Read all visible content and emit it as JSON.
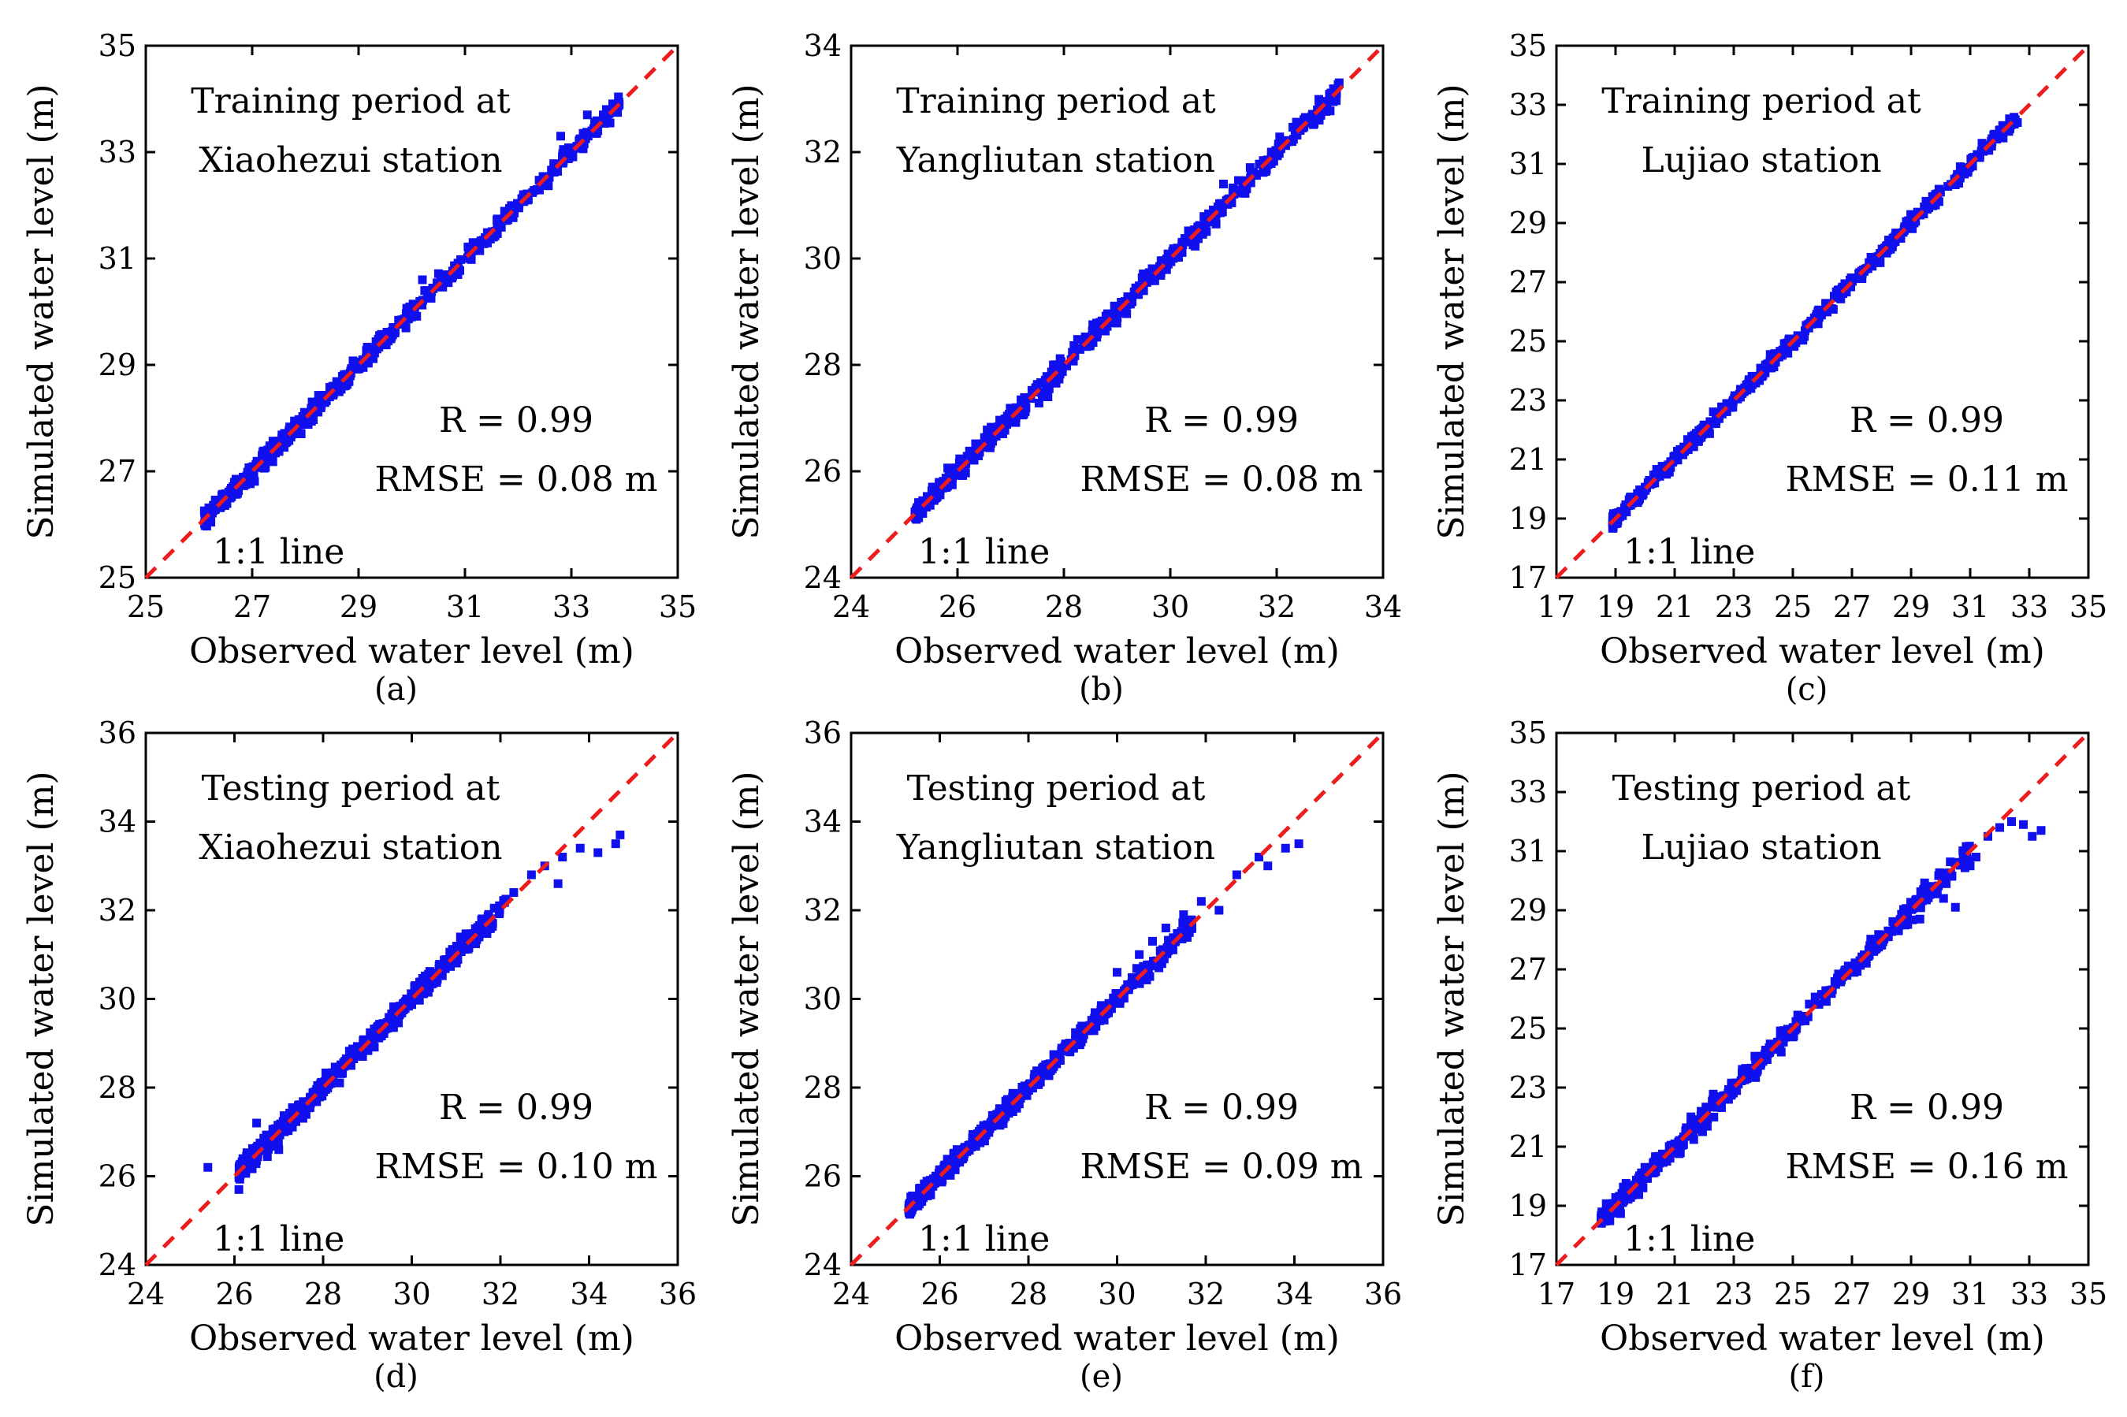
{
  "colors": {
    "points": "#1010ee",
    "one_to_one": "#ee1c1c",
    "axis": "#000000"
  },
  "chart_data": [
    {
      "type": "scatter",
      "panel_label": "(a)",
      "annotation_lines": [
        "Training period at",
        "Xiaohezui station"
      ],
      "stats": {
        "r": "R = 0.99",
        "rmse": "RMSE = 0.08 m"
      },
      "one_to_one_label": "1:1 line",
      "xlabel": "Observed water level (m)",
      "ylabel": "Simulated water level (m)",
      "xlim": [
        25,
        35
      ],
      "ylim": [
        25,
        35
      ],
      "ticks": [
        25,
        27,
        29,
        31,
        33,
        35
      ],
      "series": [
        {
          "name": "points",
          "range": [
            26.1,
            33.9
          ],
          "spread": 0.08,
          "outliers": [
            [
              32.8,
              33.3
            ],
            [
              33.3,
              33.7
            ],
            [
              30.2,
              30.6
            ],
            [
              32.1,
              32.2
            ],
            [
              33.6,
              33.7
            ]
          ]
        }
      ]
    },
    {
      "type": "scatter",
      "panel_label": "(b)",
      "annotation_lines": [
        "Training period at",
        "Yangliutan station"
      ],
      "stats": {
        "r": "R = 0.99",
        "rmse": "RMSE = 0.08 m"
      },
      "one_to_one_label": "1:1 line",
      "xlabel": "Observed water level (m)",
      "ylabel": "Simulated water level (m)",
      "xlim": [
        24,
        34
      ],
      "ylim": [
        24,
        34
      ],
      "ticks": [
        24,
        26,
        28,
        30,
        32,
        34
      ],
      "series": [
        {
          "name": "points",
          "range": [
            25.2,
            33.2
          ],
          "spread": 0.08,
          "outliers": [
            [
              27.7,
              27.4
            ],
            [
              31.0,
              31.4
            ],
            [
              31.9,
              32.0
            ],
            [
              32.5,
              32.5
            ],
            [
              32.8,
              32.6
            ]
          ]
        }
      ]
    },
    {
      "type": "scatter",
      "panel_label": "(c)",
      "annotation_lines": [
        "Training period at",
        "Lujiao station"
      ],
      "stats": {
        "r": "R = 0.99",
        "rmse": "RMSE = 0.11 m"
      },
      "one_to_one_label": "1:1 line",
      "xlabel": "Observed water level (m)",
      "ylabel": "Simulated water level (m)",
      "xlim": [
        17,
        35
      ],
      "ylim": [
        17,
        35
      ],
      "ticks": [
        17,
        19,
        21,
        23,
        25,
        27,
        29,
        31,
        33,
        35
      ],
      "series": [
        {
          "name": "points",
          "range": [
            18.9,
            32.6
          ],
          "spread": 0.11,
          "outliers": [
            [
              31.4,
              31.7
            ],
            [
              32.1,
              32.3
            ],
            [
              32.6,
              32.4
            ]
          ]
        }
      ]
    },
    {
      "type": "scatter",
      "panel_label": "(d)",
      "annotation_lines": [
        "Testing period at",
        "Xiaohezui station"
      ],
      "stats": {
        "r": "R = 0.99",
        "rmse": "RMSE = 0.10 m"
      },
      "one_to_one_label": "1:1 line",
      "xlabel": "Observed water level (m)",
      "ylabel": "Simulated water level (m)",
      "xlim": [
        24,
        36
      ],
      "ylim": [
        24,
        36
      ],
      "ticks": [
        24,
        26,
        28,
        30,
        32,
        34,
        36
      ],
      "series": [
        {
          "name": "points",
          "range": [
            26.1,
            32.2
          ],
          "spread": 0.1,
          "outliers": [
            [
              25.4,
              26.2
            ],
            [
              26.1,
              25.7
            ],
            [
              26.5,
              27.2
            ],
            [
              27.0,
              26.6
            ],
            [
              32.7,
              32.8
            ],
            [
              33.0,
              33.0
            ],
            [
              33.3,
              32.6
            ],
            [
              33.4,
              33.2
            ],
            [
              33.8,
              33.4
            ],
            [
              34.2,
              33.3
            ],
            [
              34.6,
              33.5
            ],
            [
              34.7,
              33.7
            ],
            [
              32.3,
              32.4
            ]
          ]
        }
      ]
    },
    {
      "type": "scatter",
      "panel_label": "(e)",
      "annotation_lines": [
        "Testing period at",
        "Yangliutan station"
      ],
      "stats": {
        "r": "R = 0.99",
        "rmse": "RMSE = 0.09 m"
      },
      "one_to_one_label": "1:1 line",
      "xlabel": "Observed water level (m)",
      "ylabel": "Simulated water level (m)",
      "xlim": [
        24,
        36
      ],
      "ylim": [
        24,
        36
      ],
      "ticks": [
        24,
        26,
        28,
        30,
        32,
        34,
        36
      ],
      "series": [
        {
          "name": "points",
          "range": [
            25.3,
            31.7
          ],
          "spread": 0.09,
          "outliers": [
            [
              30.0,
              30.6
            ],
            [
              30.5,
              31.0
            ],
            [
              30.8,
              31.3
            ],
            [
              31.1,
              31.6
            ],
            [
              31.9,
              32.2
            ],
            [
              32.3,
              32.0
            ],
            [
              32.7,
              32.8
            ],
            [
              33.2,
              33.2
            ],
            [
              33.4,
              33.0
            ],
            [
              33.8,
              33.4
            ],
            [
              34.1,
              33.5
            ],
            [
              31.5,
              31.9
            ]
          ]
        }
      ]
    },
    {
      "type": "scatter",
      "panel_label": "(f)",
      "annotation_lines": [
        "Testing period at",
        "Lujiao station"
      ],
      "stats": {
        "r": "R = 0.99",
        "rmse": "RMSE = 0.16 m"
      },
      "one_to_one_label": "1:1 line",
      "xlabel": "Observed water level (m)",
      "ylabel": "Simulated water level (m)",
      "xlim": [
        17,
        35
      ],
      "ylim": [
        17,
        35
      ],
      "ticks": [
        17,
        19,
        21,
        23,
        25,
        27,
        29,
        31,
        33,
        35
      ],
      "series": [
        {
          "name": "points",
          "range": [
            18.5,
            31.0
          ],
          "spread": 0.16,
          "outliers": [
            [
              28.8,
              28.5
            ],
            [
              29.3,
              28.7
            ],
            [
              30.1,
              29.4
            ],
            [
              30.5,
              29.1
            ],
            [
              31.2,
              30.8
            ],
            [
              31.6,
              31.5
            ],
            [
              32.0,
              31.8
            ],
            [
              32.4,
              32.0
            ],
            [
              32.8,
              31.9
            ],
            [
              33.1,
              31.5
            ],
            [
              33.4,
              31.7
            ],
            [
              31.0,
              30.5
            ]
          ]
        }
      ]
    }
  ]
}
